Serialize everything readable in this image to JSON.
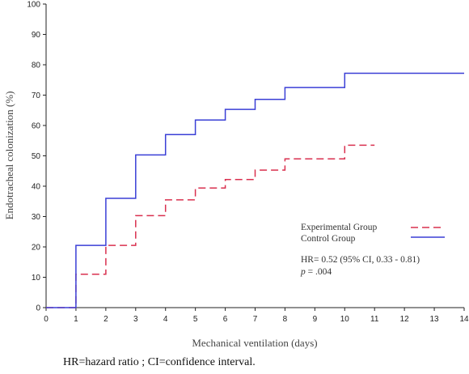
{
  "chart_data": {
    "type": "line",
    "title": "",
    "xlabel": "Mechanical ventilation (days)",
    "ylabel": "Endotracheal colonization (%)",
    "xlim": [
      0,
      14
    ],
    "ylim": [
      0,
      100
    ],
    "x_ticks": [
      "0",
      "1",
      "2",
      "3",
      "4",
      "5",
      "6",
      "7",
      "8",
      "9",
      "10",
      "11",
      "12",
      "13",
      "14"
    ],
    "y_ticks": [
      "0",
      "10",
      "20",
      "30",
      "40",
      "50",
      "60",
      "70",
      "80",
      "90",
      "100"
    ],
    "grid": false,
    "legend_position": "right-center",
    "series": [
      {
        "name": "Experimental Group",
        "style": "dashed",
        "color": "#d9304f",
        "points": [
          [
            0,
            0
          ],
          [
            1,
            0
          ],
          [
            1,
            11
          ],
          [
            2,
            11
          ],
          [
            2,
            20.5
          ],
          [
            3,
            20.5
          ],
          [
            3,
            30.3
          ],
          [
            4,
            30.3
          ],
          [
            4,
            35.5
          ],
          [
            5,
            35.5
          ],
          [
            5,
            39.4
          ],
          [
            6,
            39.4
          ],
          [
            6,
            42.2
          ],
          [
            7,
            42.2
          ],
          [
            7,
            45.3
          ],
          [
            8,
            45.3
          ],
          [
            8,
            49
          ],
          [
            10,
            49
          ],
          [
            10,
            53.5
          ],
          [
            11,
            53.5
          ]
        ]
      },
      {
        "name": "Control Group",
        "style": "solid",
        "color": "#3a3fd6",
        "points": [
          [
            0,
            0
          ],
          [
            1,
            0
          ],
          [
            1,
            20.5
          ],
          [
            2,
            20.5
          ],
          [
            2,
            36
          ],
          [
            3,
            36
          ],
          [
            3,
            50.3
          ],
          [
            4,
            50.3
          ],
          [
            4,
            57
          ],
          [
            5,
            57
          ],
          [
            5,
            61.8
          ],
          [
            6,
            61.8
          ],
          [
            6,
            65.3
          ],
          [
            7,
            65.3
          ],
          [
            7,
            68.6
          ],
          [
            8,
            68.6
          ],
          [
            8,
            72.5
          ],
          [
            10,
            72.5
          ],
          [
            10,
            77.2
          ],
          [
            14,
            77.2
          ]
        ]
      }
    ],
    "annotations": {
      "hr_text": "HR= 0.52 (95% CI, 0.33 - 0.81)",
      "p_symbol": "p",
      "p_value": " = .004"
    }
  },
  "footnote": "HR=hazard ratio ; CI=confidence interval."
}
